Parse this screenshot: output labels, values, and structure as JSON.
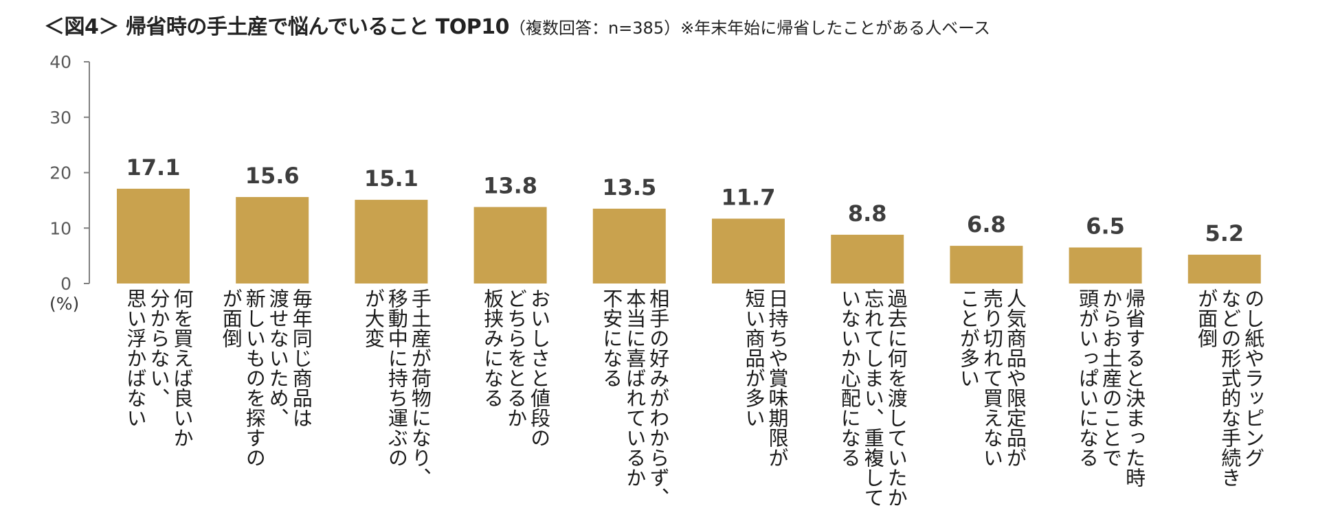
{
  "title": {
    "main": "＜図4＞ 帰省時の手土産で悩んでいること TOP10",
    "sub": "（複数回答：n=385）",
    "note": "※年末年始に帰省したことがある人ベース"
  },
  "colors": {
    "bar": "#C9A24E",
    "axis": "#7F7F7F",
    "value_text": "#3D3D3D"
  },
  "chart_data": {
    "type": "bar",
    "unit_label": "(%)",
    "ylim": [
      0,
      40
    ],
    "yticks": [
      0,
      10,
      20,
      30,
      40
    ],
    "categories": [
      "何を買えば良いか\n分からない、\n思い浮かばない",
      "毎年同じ商品は\n渡せないため、\n新しいものを探すの\nが面倒",
      "手土産が荷物になり、\n移動中に持ち運ぶの\nが大変",
      "おいしさと値段の\nどちらをとるか\n板挟みになる",
      "相手の好みがわからず、\n本当に喜ばれているか\n不安になる",
      "日持ちや賞味期限が\n短い商品が多い",
      "過去に何を渡していたか\n忘れてしまい、重複して\nいないか心配になる",
      "人気商品や限定品が\n売り切れて買えない\nことが多い",
      "帰省すると決まった時\nからお土産のことで\n頭がいっぱいになる",
      "のし紙やラッピング\nなどの形式的な手続き\nが面倒"
    ],
    "values": [
      17.1,
      15.6,
      15.1,
      13.8,
      13.5,
      11.7,
      8.8,
      6.8,
      6.5,
      5.2
    ],
    "value_labels": [
      "17.1",
      "15.6",
      "15.1",
      "13.8",
      "13.5",
      "11.7",
      "8.8",
      "6.8",
      "6.5",
      "5.2"
    ]
  }
}
